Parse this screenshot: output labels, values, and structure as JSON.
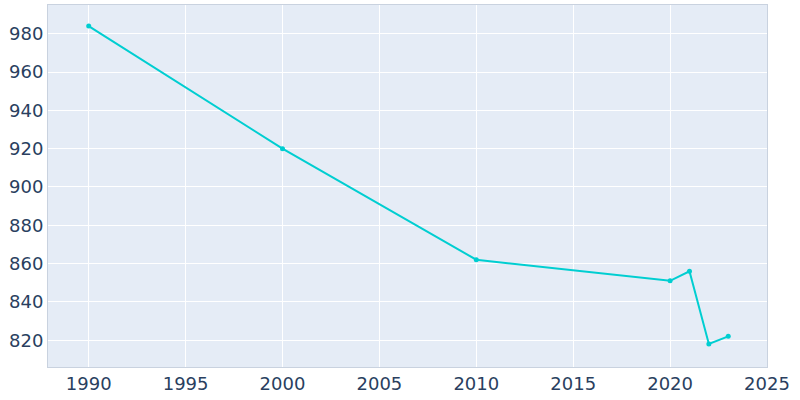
{
  "chart_data": {
    "type": "line",
    "x": [
      1990,
      2000,
      2010,
      2020,
      2021,
      2022,
      2023
    ],
    "values": [
      984,
      920,
      862,
      851,
      856,
      818,
      822
    ],
    "color": "#00ced1",
    "marker": "circle",
    "xlim": [
      1987.9,
      2025
    ],
    "xticks": [
      1990,
      1995,
      2000,
      2005,
      2010,
      2015,
      2020,
      2025
    ],
    "ylim": [
      806,
      995
    ],
    "yticks": [
      820,
      840,
      860,
      880,
      900,
      920,
      940,
      960,
      980
    ],
    "grid": true
  }
}
